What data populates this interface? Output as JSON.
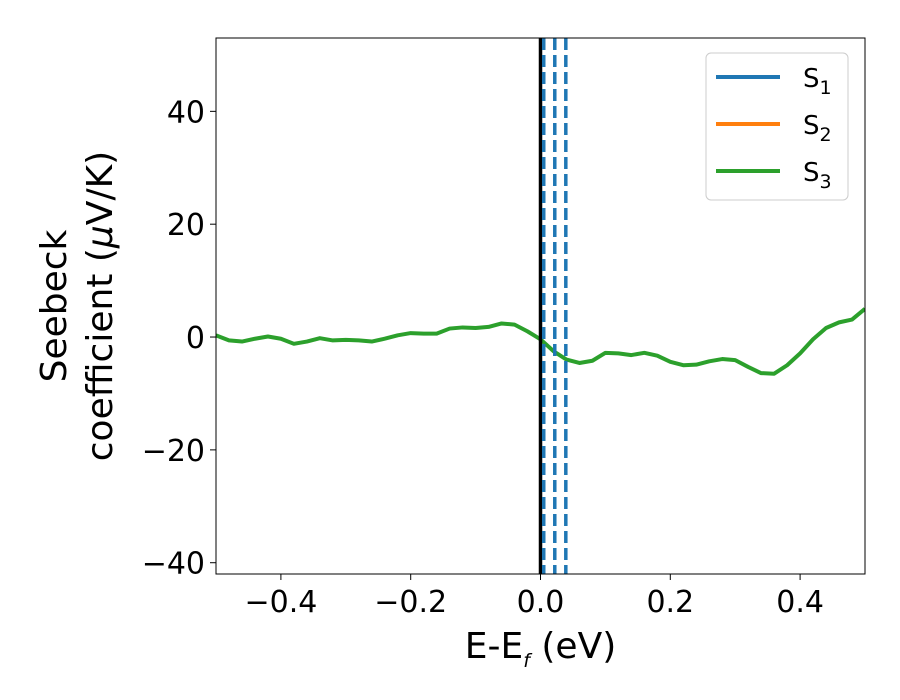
{
  "chart_data": {
    "type": "line",
    "xlabel": {
      "main": "E-E",
      "sub": "f",
      "rest": " (eV)"
    },
    "ylabel": {
      "line1": "Seebeck",
      "line2_pre": "coefficient  (",
      "line2_mu": "μ",
      "line2_post": "V/K)"
    },
    "xlim": [
      -0.5,
      0.5
    ],
    "ylim": [
      -42,
      53
    ],
    "x_ticks": [
      -0.4,
      -0.2,
      0.0,
      0.2,
      0.4
    ],
    "x_tick_labels": [
      "−0.4",
      "−0.2",
      "0.0",
      "0.2",
      "0.4"
    ],
    "y_ticks": [
      -40,
      -20,
      0,
      20,
      40
    ],
    "y_tick_labels": [
      "−40",
      "−20",
      "0",
      "20",
      "40"
    ],
    "grid": false,
    "legend_position": "top-right",
    "series": [
      {
        "name": "S",
        "sub": "1",
        "color": "#1f77b4"
      },
      {
        "name": "S",
        "sub": "2",
        "color": "#ff7f0e"
      },
      {
        "name": "S",
        "sub": "3",
        "color": "#2ca02c"
      }
    ],
    "curve": {
      "x": [
        -0.5,
        -0.48,
        -0.46,
        -0.44,
        -0.42,
        -0.4,
        -0.38,
        -0.36,
        -0.34,
        -0.32,
        -0.3,
        -0.28,
        -0.26,
        -0.24,
        -0.22,
        -0.2,
        -0.18,
        -0.16,
        -0.14,
        -0.12,
        -0.1,
        -0.08,
        -0.06,
        -0.04,
        -0.02,
        0.0,
        0.02,
        0.04,
        0.06,
        0.08,
        0.1,
        0.12,
        0.14,
        0.16,
        0.18,
        0.2,
        0.22,
        0.24,
        0.26,
        0.28,
        0.3,
        0.32,
        0.34,
        0.36,
        0.38,
        0.4,
        0.42,
        0.44,
        0.46,
        0.48,
        0.5
      ],
      "y": [
        0.3,
        -0.6,
        -0.8,
        -0.3,
        0.1,
        -0.3,
        -1.2,
        -0.8,
        -0.2,
        -0.6,
        -0.5,
        -0.6,
        -0.8,
        -0.3,
        0.3,
        0.7,
        0.6,
        0.6,
        1.5,
        1.7,
        1.6,
        1.8,
        2.4,
        2.2,
        1.0,
        -0.4,
        -2.5,
        -4.0,
        -4.6,
        -4.2,
        -2.8,
        -2.9,
        -3.2,
        -2.8,
        -3.3,
        -4.4,
        -5.0,
        -4.9,
        -4.3,
        -3.9,
        -4.1,
        -5.3,
        -6.4,
        -6.5,
        -5.0,
        -2.9,
        -0.4,
        1.6,
        2.6,
        3.1,
        5.0
      ],
      "color": "#2ca02c"
    },
    "vlines": [
      {
        "x": 0.0,
        "style": "solid",
        "color": "#000000"
      },
      {
        "x": 0.005,
        "style": "dashed",
        "color": "#1f77b4"
      },
      {
        "x": 0.022,
        "style": "dashed",
        "color": "#1f77b4"
      },
      {
        "x": 0.039,
        "style": "dashed",
        "color": "#1f77b4"
      }
    ]
  }
}
